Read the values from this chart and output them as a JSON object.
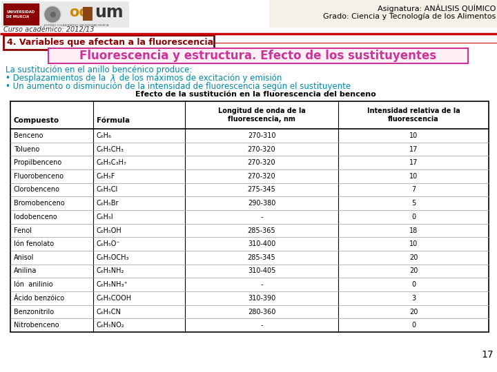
{
  "header_left_text": "Curso académico: 2012/13",
  "header_right_line1": "Asignatura: ANÁLISIS QUÍMICO",
  "header_right_line2": "Grado: Ciencia y Tecnología de los Alimentos",
  "section_title": "4. Variables que afectan a la fluorescencia",
  "slide_title": "Fluorescencia y estructura. Efecto de los sustituyentes",
  "intro_line1": "La sustitución en el anillo bencénico produce:",
  "bullet1_pre": "• Desplazamientos de la ",
  "bullet1_lambda": "λ",
  "bullet1_post": " de los máximos de excitación y emisión",
  "bullet2": "• Un aumento o disminución de la intensidad de fluorescencia según el sustituyente",
  "table_title": "Efecto de la sustitución en la fluorescencia del benceno",
  "table_headers": [
    "Compuesto",
    "Fórmula",
    "Longitud de onda de la\nfluorescencia, nm",
    "Intensidad relativa de la\nfluorescencia"
  ],
  "table_data": [
    [
      "Benceno",
      "C₆H₆",
      "270-310",
      "10"
    ],
    [
      "Tolueno",
      "C₆H₅CH₃",
      "270-320",
      "17"
    ],
    [
      "Propilbenceno",
      "C₆H₅C₃H₇",
      "270-320",
      "17"
    ],
    [
      "Fluorobenceno",
      "C₆H₅F",
      "270-320",
      "10"
    ],
    [
      "Clorobenceno",
      "C₆H₅Cl",
      "275-345",
      "7"
    ],
    [
      "Bromobenceno",
      "C₆H₅Br",
      "290-380",
      "5"
    ],
    [
      "Iodobenceno",
      "C₆H₅I",
      "-",
      "0"
    ],
    [
      "Fenol",
      "C₆H₅OH",
      "285-365",
      "18"
    ],
    [
      "Ión fenolato",
      "C₆H₅O⁻",
      "310-400",
      "10"
    ],
    [
      "Anisol",
      "C₆H₅OCH₃",
      "285-345",
      "20"
    ],
    [
      "Anilina",
      "C₆H₅NH₂",
      "310-405",
      "20"
    ],
    [
      "Ión  anilinio",
      "C₆H₅NH₃⁺",
      "-",
      "0"
    ],
    [
      "Ácido benzóico",
      "C₆H₅COOH",
      "310-390",
      "3"
    ],
    [
      "Benzonitrilo",
      "C₆H₅CN",
      "280-360",
      "20"
    ],
    [
      "Nitrobenceno",
      "C₆H₅NO₂",
      "-",
      "0"
    ]
  ],
  "bg_color": "#ffffff",
  "header_bg_color": "#f5f0e8",
  "header_bar_color": "#8B0000",
  "section_box_color": "#8B0000",
  "slide_title_color": "#cc3399",
  "slide_title_box_border": "#cc3399",
  "slide_title_box_bg": "#fff0f8",
  "intro_color": "#0088aa",
  "bullet_color": "#0088aa",
  "table_title_color": "#000000",
  "page_number": "17",
  "divider_color": "#cc0000"
}
